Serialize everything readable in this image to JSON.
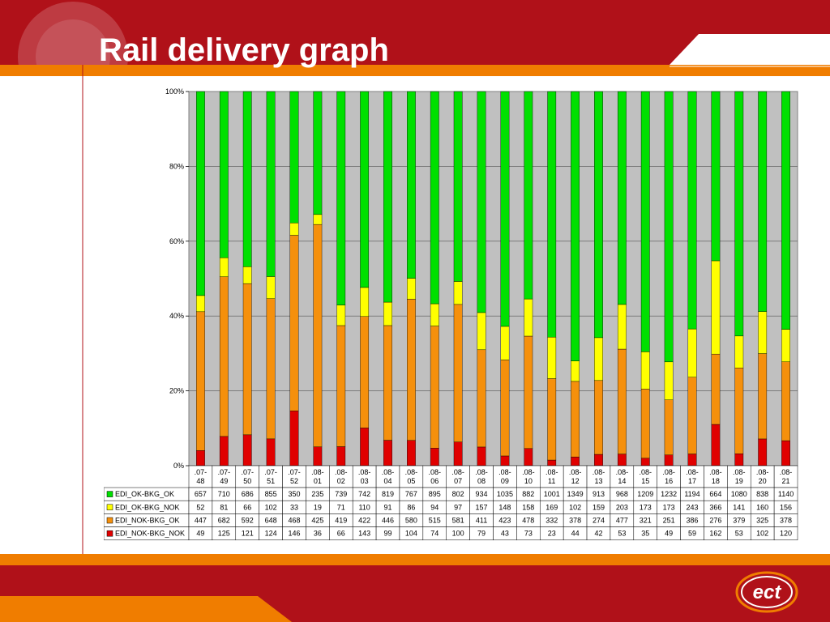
{
  "slide": {
    "title": "Rail delivery graph",
    "colors": {
      "brand_red": "#b01119",
      "brand_orange": "#f07d00",
      "panel_bg": "#ffffff"
    },
    "logo": {
      "text": "ect",
      "icon": "ect-logo-icon"
    }
  },
  "chart_data": {
    "type": "bar",
    "stacking": "percent",
    "title": "",
    "xlabel": "",
    "ylabel": "",
    "ylim": [
      0,
      100
    ],
    "y_ticks": [
      "0%",
      "20%",
      "40%",
      "60%",
      "80%",
      "100%"
    ],
    "grid": true,
    "legend": "data-table-left",
    "categories": [
      ".07-48",
      ".07-49",
      ".07-50",
      ".07-51",
      ".07-52",
      ".08-01",
      ".08-02",
      ".08-03",
      ".08-04",
      ".08-05",
      ".08-06",
      ".08-07",
      ".08-08",
      ".08-09",
      ".08-10",
      ".08-11",
      ".08-12",
      ".08-13",
      ".08-14",
      ".08-15",
      ".08-16",
      ".08-17",
      ".08-18",
      ".08-19",
      ".08-20",
      ".08-21"
    ],
    "category_lines": [
      [
        ".07-",
        "48"
      ],
      [
        ".07-",
        "49"
      ],
      [
        ".07-",
        "50"
      ],
      [
        ".07-",
        "51"
      ],
      [
        ".07-",
        "52"
      ],
      [
        ".08-",
        "01"
      ],
      [
        ".08-",
        "02"
      ],
      [
        ".08-",
        "03"
      ],
      [
        ".08-",
        "04"
      ],
      [
        ".08-",
        "05"
      ],
      [
        ".08-",
        "06"
      ],
      [
        ".08-",
        "07"
      ],
      [
        ".08-",
        "08"
      ],
      [
        ".08-",
        "09"
      ],
      [
        ".08-",
        "10"
      ],
      [
        ".08-",
        "11"
      ],
      [
        ".08-",
        "12"
      ],
      [
        ".08-",
        "13"
      ],
      [
        ".08-",
        "14"
      ],
      [
        ".08-",
        "15"
      ],
      [
        ".08-",
        "16"
      ],
      [
        ".08-",
        "17"
      ],
      [
        ".08-",
        "18"
      ],
      [
        ".08-",
        "19"
      ],
      [
        ".08-",
        "20"
      ],
      [
        ".08-",
        "21"
      ]
    ],
    "series": [
      {
        "name": "EDI_OK-BKG_OK",
        "color": "#00e000",
        "values": [
          657,
          710,
          686,
          855,
          350,
          235,
          739,
          742,
          819,
          767,
          895,
          802,
          934,
          1035,
          882,
          1001,
          1349,
          913,
          968,
          1209,
          1232,
          1194,
          664,
          1080,
          838,
          1140
        ]
      },
      {
        "name": "EDI_OK-BKG_NOK",
        "color": "#ffff00",
        "values": [
          52,
          81,
          66,
          102,
          33,
          19,
          71,
          110,
          91,
          86,
          94,
          97,
          157,
          148,
          158,
          169,
          102,
          159,
          203,
          173,
          173,
          243,
          366,
          141,
          160,
          156
        ]
      },
      {
        "name": "EDI_NOK-BKG_OK",
        "color": "#f5900c",
        "values": [
          447,
          682,
          592,
          648,
          468,
          425,
          419,
          422,
          446,
          580,
          515,
          581,
          411,
          423,
          478,
          332,
          378,
          274,
          477,
          321,
          251,
          386,
          276,
          379,
          325,
          378
        ]
      },
      {
        "name": "EDI_NOK-BKG_NOK",
        "color": "#e00000",
        "values": [
          49,
          125,
          121,
          124,
          146,
          36,
          66,
          143,
          99,
          104,
          74,
          100,
          79,
          43,
          73,
          23,
          44,
          42,
          53,
          35,
          49,
          59,
          162,
          53,
          102,
          120
        ]
      }
    ]
  }
}
